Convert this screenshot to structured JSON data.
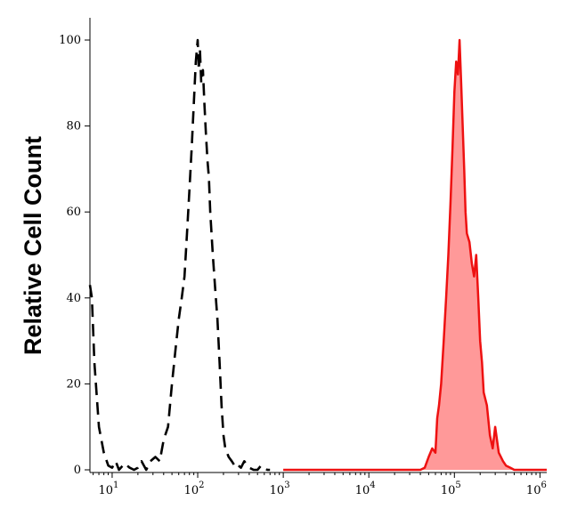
{
  "chart_data": {
    "type": "line",
    "title": "",
    "xlabel": "",
    "ylabel": "Relative Cell Count",
    "x_scale": "log",
    "xlim": [
      5.5,
      1200000
    ],
    "ylim": [
      0,
      100
    ],
    "grid": false,
    "y_ticks": [
      0,
      20,
      40,
      60,
      80,
      100
    ],
    "x_ticks": [
      {
        "value": 10,
        "base": "10",
        "exp": "1"
      },
      {
        "value": 100,
        "base": "10",
        "exp": "2"
      },
      {
        "value": 1000,
        "base": "10",
        "exp": "3"
      },
      {
        "value": 10000,
        "base": "10",
        "exp": "4"
      },
      {
        "value": 100000,
        "base": "10",
        "exp": "5"
      },
      {
        "value": 1000000,
        "base": "10",
        "exp": "6"
      }
    ],
    "series": [
      {
        "style": "dashed",
        "color": "#000000",
        "x": [
          5.5,
          5.8,
          6.2,
          7,
          8,
          9,
          10,
          11,
          12,
          14,
          16,
          18,
          20,
          22,
          25,
          28,
          32,
          36,
          40,
          45,
          50,
          55,
          60,
          65,
          70,
          75,
          80,
          85,
          90,
          95,
          100,
          103,
          106,
          110,
          115,
          120,
          125,
          130,
          135,
          140,
          150,
          160,
          170,
          180,
          190,
          200,
          210,
          230,
          250,
          280,
          300,
          320,
          350,
          400,
          450,
          500,
          550,
          600,
          650,
          700
        ],
        "values": [
          43,
          40,
          25,
          10,
          4,
          1,
          0.5,
          2,
          0,
          1.5,
          0.5,
          0,
          0.5,
          2,
          0,
          2,
          3,
          2,
          7,
          10,
          20,
          28,
          35,
          40,
          45,
          55,
          65,
          75,
          85,
          95,
          100,
          93,
          98,
          90,
          93,
          85,
          78,
          72,
          68,
          60,
          50,
          42,
          35,
          25,
          15,
          8,
          5,
          3,
          2,
          0.5,
          1,
          0.5,
          2,
          0.5,
          0,
          0,
          1,
          0.5,
          0,
          0
        ]
      },
      {
        "style": "filled",
        "color": "#ee1111",
        "fill": "#ff9999",
        "x": [
          1000,
          10000,
          40000,
          45000,
          50000,
          55000,
          60000,
          63000,
          66000,
          70000,
          75000,
          80000,
          85000,
          90000,
          95000,
          100000,
          105000,
          110000,
          115000,
          120000,
          125000,
          130000,
          135000,
          140000,
          150000,
          160000,
          170000,
          180000,
          190000,
          200000,
          210000,
          220000,
          240000,
          260000,
          280000,
          300000,
          330000,
          370000,
          400000,
          450000,
          500000,
          600000,
          800000,
          1200000
        ],
        "values": [
          0,
          0,
          0,
          0.5,
          3,
          5,
          4,
          12,
          15,
          20,
          30,
          40,
          50,
          62,
          75,
          88,
          95,
          92,
          100,
          90,
          80,
          70,
          60,
          55,
          53,
          48,
          45,
          50,
          40,
          30,
          25,
          18,
          15,
          8,
          5,
          10,
          4,
          2,
          1,
          0.5,
          0,
          0,
          0,
          0
        ]
      }
    ]
  }
}
